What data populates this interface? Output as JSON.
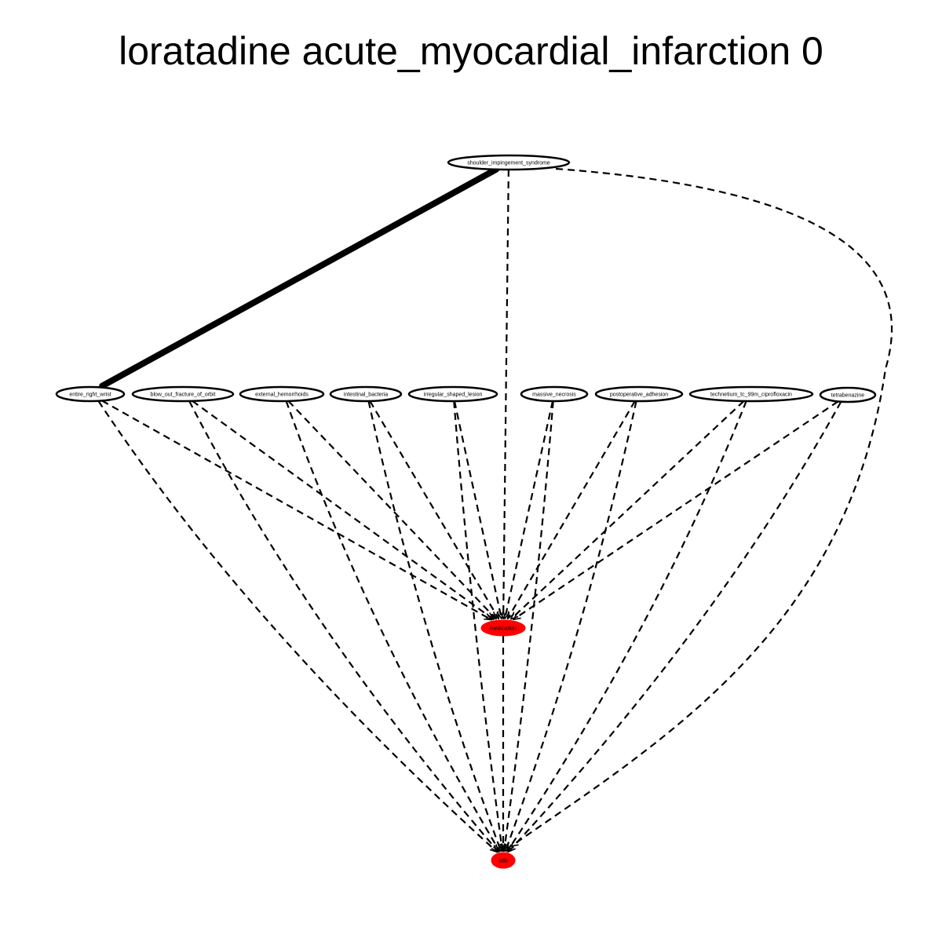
{
  "title": "loratadine acute_myocardial_infarction 0",
  "colors": {
    "highlight": "#ff0000",
    "edge": "#000000",
    "node_fill": "#ffffff"
  },
  "nodes": {
    "shoulder": "shoulder_impingement_syndrome",
    "wrist": "entire_right_wrist",
    "orbit": "blow_out_fracture_of_orbit",
    "hemorrhoids": "external_hemorrhoids",
    "bacteria": "intestinal_bacteria",
    "lesion": "irregular_shaped_lesion",
    "necrosis": "massive_necrosis",
    "adhesion": "postoperative_adhesion",
    "technetium": "technetium_tc_99m_ciprofloxacin",
    "tetrabenazine": "tetrabenazine",
    "medication": "medication",
    "ade": "ade"
  },
  "edges": [
    {
      "from": "shoulder",
      "to": "wrist",
      "style": "solid-thick"
    },
    {
      "from": "shoulder",
      "to": "medication",
      "style": "dashed"
    },
    {
      "from": "shoulder",
      "to": "ade",
      "style": "dashed"
    },
    {
      "from": "wrist",
      "to": "medication",
      "style": "dashed"
    },
    {
      "from": "wrist",
      "to": "ade",
      "style": "dashed"
    },
    {
      "from": "orbit",
      "to": "medication",
      "style": "dashed"
    },
    {
      "from": "orbit",
      "to": "ade",
      "style": "dashed"
    },
    {
      "from": "hemorrhoids",
      "to": "medication",
      "style": "dashed"
    },
    {
      "from": "hemorrhoids",
      "to": "ade",
      "style": "dashed"
    },
    {
      "from": "bacteria",
      "to": "medication",
      "style": "dashed"
    },
    {
      "from": "bacteria",
      "to": "ade",
      "style": "dashed"
    },
    {
      "from": "lesion",
      "to": "medication",
      "style": "dashed"
    },
    {
      "from": "lesion",
      "to": "ade",
      "style": "dashed"
    },
    {
      "from": "necrosis",
      "to": "medication",
      "style": "dashed"
    },
    {
      "from": "necrosis",
      "to": "ade",
      "style": "dashed"
    },
    {
      "from": "adhesion",
      "to": "medication",
      "style": "dashed"
    },
    {
      "from": "adhesion",
      "to": "ade",
      "style": "dashed"
    },
    {
      "from": "technetium",
      "to": "medication",
      "style": "dashed"
    },
    {
      "from": "technetium",
      "to": "ade",
      "style": "dashed"
    },
    {
      "from": "tetrabenazine",
      "to": "medication",
      "style": "dashed"
    },
    {
      "from": "tetrabenazine",
      "to": "ade",
      "style": "dashed"
    },
    {
      "from": "medication",
      "to": "ade",
      "style": "dashed"
    }
  ]
}
